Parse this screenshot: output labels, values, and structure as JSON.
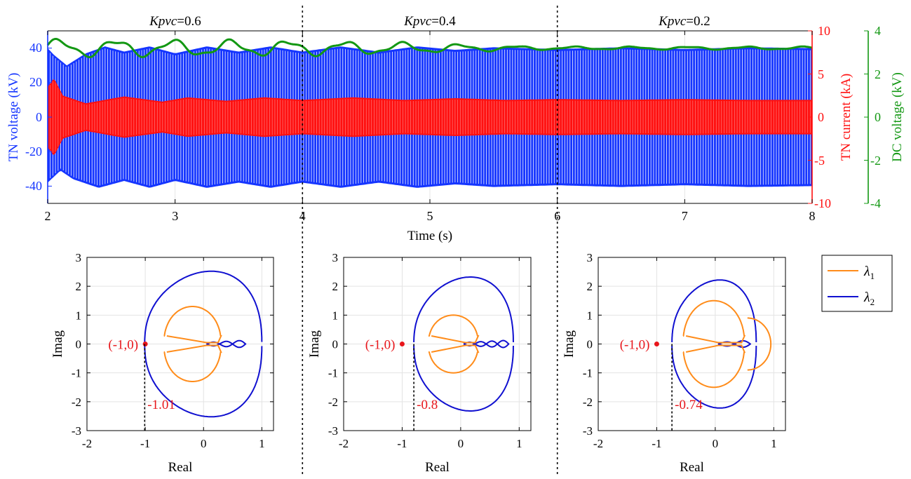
{
  "colors": {
    "voltage": "#1535ff",
    "current": "#ff1010",
    "dc": "#139813",
    "lambda1": "#ff8c1a",
    "lambda2": "#1010d0",
    "annotation": "#e8161b",
    "dotted": "#000000"
  },
  "chart_data": [
    {
      "type": "line",
      "title": "",
      "xlabel": "Time (s)",
      "xlim": [
        2,
        8
      ],
      "xticks": [
        "2",
        "3",
        "4",
        "5",
        "6",
        "7",
        "8"
      ],
      "axes": {
        "left": {
          "label": "TN voltage (kV)",
          "ylim": [
            -50,
            50
          ],
          "ticks": [
            "40",
            "20",
            "0",
            "-20",
            "-40"
          ]
        },
        "right1": {
          "label": "TN current (kA)",
          "ylim": [
            -10,
            10
          ],
          "ticks": [
            "10",
            "5",
            "0",
            "-5",
            "-10"
          ]
        },
        "right2": {
          "label": "DC voltage (kV)",
          "ylim": [
            -4,
            4
          ],
          "ticks": [
            "4",
            "2",
            "0",
            "-2",
            "-4"
          ]
        }
      },
      "segment_boundaries": [
        4,
        6
      ],
      "segments": [
        {
          "label_italic": "Kpvc",
          "label_value": "=0.6",
          "t_range": [
            2,
            4
          ]
        },
        {
          "label_italic": "Kpvc",
          "label_value": "=0.4",
          "t_range": [
            4,
            6
          ]
        },
        {
          "label_italic": "Kpvc",
          "label_value": "=0.2",
          "t_range": [
            6,
            8
          ]
        }
      ],
      "series": [
        {
          "axis": "left",
          "envelope_upper_kV": [
            [
              2.0,
              40
            ],
            [
              2.05,
              36
            ],
            [
              2.15,
              30
            ],
            [
              2.3,
              37
            ],
            [
              2.45,
              41
            ],
            [
              2.6,
              38
            ],
            [
              2.8,
              41
            ],
            [
              3.0,
              37
            ],
            [
              3.25,
              41
            ],
            [
              3.5,
              38
            ],
            [
              3.75,
              41
            ],
            [
              4.0,
              38
            ],
            [
              4.3,
              41
            ],
            [
              4.6,
              38
            ],
            [
              4.9,
              41
            ],
            [
              5.2,
              39
            ],
            [
              5.5,
              40.5
            ],
            [
              6.0,
              39.5
            ],
            [
              6.5,
              40.5
            ],
            [
              7.0,
              39.5
            ],
            [
              7.5,
              40.5
            ],
            [
              8.0,
              40
            ]
          ],
          "envelope_lower_kV": [
            [
              2.0,
              -38
            ],
            [
              2.1,
              -31
            ],
            [
              2.2,
              -36
            ],
            [
              2.4,
              -41
            ],
            [
              2.6,
              -37
            ],
            [
              2.8,
              -41
            ],
            [
              3.0,
              -37
            ],
            [
              3.25,
              -41
            ],
            [
              3.5,
              -38
            ],
            [
              3.75,
              -41
            ],
            [
              4.0,
              -38
            ],
            [
              4.3,
              -41
            ],
            [
              4.6,
              -38
            ],
            [
              4.9,
              -41
            ],
            [
              5.2,
              -39
            ],
            [
              5.5,
              -40.5
            ],
            [
              6.0,
              -39.5
            ],
            [
              6.5,
              -40.5
            ],
            [
              7.0,
              -39.5
            ],
            [
              7.5,
              -40.5
            ],
            [
              8.0,
              -40
            ]
          ]
        },
        {
          "axis": "right1",
          "envelope_upper_kA": [
            [
              2.0,
              3.5
            ],
            [
              2.05,
              4.5
            ],
            [
              2.12,
              2.5
            ],
            [
              2.3,
              1.6
            ],
            [
              2.6,
              2.4
            ],
            [
              2.9,
              1.8
            ],
            [
              3.1,
              2.3
            ],
            [
              3.4,
              1.9
            ],
            [
              3.7,
              2.3
            ],
            [
              4.0,
              2.0
            ],
            [
              4.4,
              2.3
            ],
            [
              4.8,
              2.0
            ],
            [
              5.2,
              2.2
            ],
            [
              5.6,
              2.0
            ],
            [
              6.0,
              2.1
            ],
            [
              6.5,
              2.0
            ],
            [
              7.0,
              2.1
            ],
            [
              7.5,
              2.0
            ],
            [
              8.0,
              2.0
            ]
          ],
          "envelope_lower_kA": [
            [
              2.0,
              -3.5
            ],
            [
              2.05,
              -4.5
            ],
            [
              2.12,
              -2.5
            ],
            [
              2.3,
              -1.6
            ],
            [
              2.6,
              -2.4
            ],
            [
              2.9,
              -1.8
            ],
            [
              3.1,
              -2.3
            ],
            [
              3.4,
              -1.9
            ],
            [
              3.7,
              -2.3
            ],
            [
              4.0,
              -2.0
            ],
            [
              4.4,
              -2.3
            ],
            [
              4.8,
              -2.0
            ],
            [
              5.2,
              -2.2
            ],
            [
              5.6,
              -2.0
            ],
            [
              6.0,
              -2.1
            ],
            [
              6.5,
              -2.0
            ],
            [
              7.0,
              -2.1
            ],
            [
              7.5,
              -2.0
            ],
            [
              8.0,
              -2.0
            ]
          ]
        },
        {
          "axis": "right2",
          "mean_kV": 3.2,
          "ripple_kV": [
            [
              2.0,
              0.35
            ],
            [
              4.0,
              0.3
            ],
            [
              4.8,
              0.22
            ],
            [
              5.6,
              0.1
            ],
            [
              6.0,
              0.06
            ],
            [
              8.0,
              0.06
            ]
          ],
          "ripple_period_s": 0.45
        }
      ]
    },
    {
      "type": "nyquist",
      "xlabel": "Real",
      "ylabel": "Imag",
      "xlim": [
        -2,
        1.2
      ],
      "ylim": [
        -3,
        3
      ],
      "xticks": [
        "-2",
        "-1",
        "0",
        "1"
      ],
      "yticks": [
        "3",
        "2",
        "1",
        "0",
        "-1",
        "-2",
        "-3"
      ],
      "critical_point": {
        "label": "(-1,0)",
        "x": -1,
        "y": 0
      },
      "crossing": {
        "x": -1.01,
        "label": "-1.01"
      },
      "lambda2": {
        "left_x": -1.01,
        "right_x": 1.0,
        "peak_y": 2.5,
        "neck_y": 0.07,
        "tail_end_x": 0.72,
        "loops": 3
      },
      "lambda1": {
        "left_x": -0.68,
        "right_x": 0.3,
        "peak_y": 1.3,
        "neck_x": 0.05
      }
    },
    {
      "type": "nyquist",
      "xlabel": "Real",
      "ylabel": "Imag",
      "xlim": [
        -2,
        1.2
      ],
      "ylim": [
        -3,
        3
      ],
      "xticks": [
        "-2",
        "-1",
        "0",
        "1"
      ],
      "yticks": [
        "3",
        "2",
        "1",
        "0",
        "-1",
        "-2",
        "-3"
      ],
      "critical_point": {
        "label": "(-1,0)",
        "x": -1,
        "y": 0
      },
      "crossing": {
        "x": -0.8,
        "label": "-0.8"
      },
      "lambda2": {
        "left_x": -0.8,
        "right_x": 0.9,
        "peak_y": 2.3,
        "neck_y": 0.06,
        "tail_end_x": 0.82,
        "loops": 4
      },
      "lambda1": {
        "left_x": -0.55,
        "right_x": 0.3,
        "peak_y": 1.0,
        "neck_x": 0.08
      }
    },
    {
      "type": "nyquist",
      "xlabel": "Real",
      "ylabel": "Imag",
      "xlim": [
        -2,
        1.2
      ],
      "ylim": [
        -3,
        3
      ],
      "xticks": [
        "-2",
        "-1",
        "0",
        "1"
      ],
      "yticks": [
        "3",
        "2",
        "1",
        "0",
        "-1",
        "-2",
        "-3"
      ],
      "critical_point": {
        "label": "(-1,0)",
        "x": -1,
        "y": 0
      },
      "crossing": {
        "x": -0.74,
        "label": "-0.74"
      },
      "lambda2": {
        "left_x": -0.74,
        "right_x": 0.7,
        "peak_y": 2.2,
        "neck_y": 0.06,
        "tail_end_x": 0.6,
        "loops": 2
      },
      "lambda1": {
        "left_x": -0.55,
        "right_x": 0.5,
        "peak_y": 1.5,
        "neck_x": 0.05,
        "right_lobe_x": 0.95
      }
    }
  ],
  "legend": {
    "entries": [
      {
        "symbol": "λ",
        "subscript": "1",
        "color_key": "lambda1"
      },
      {
        "symbol": "λ",
        "subscript": "2",
        "color_key": "lambda2"
      }
    ]
  }
}
